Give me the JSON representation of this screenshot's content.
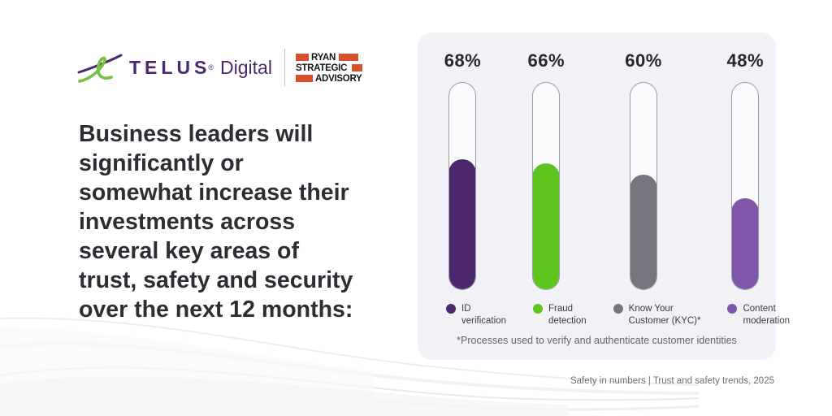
{
  "brand": {
    "telus_wordmark": "TELUS",
    "telus_trademark": "®",
    "telus_product": "Digital",
    "partner": {
      "line1": "RYAN",
      "line2": "STRATEGIC",
      "line3": "ADVISORY"
    },
    "colors": {
      "telus_purple": "#4B286D",
      "icon_green": "#76C043",
      "partner_orange": "#D6502E"
    }
  },
  "headline": "Business leaders will\nsignificantly or\nsomewhat increase their\ninvestments across\nseveral key areas of\ntrust, safety and security\nover the next 12 months:",
  "chart_data": {
    "type": "bar",
    "orientation": "vertical",
    "unit": "%",
    "ylim": [
      0,
      100
    ],
    "grid": false,
    "legend_position": "bottom",
    "categories": [
      "ID verification",
      "Fraud detection",
      "Know Your Customer (KYC)*",
      "Content moderation"
    ],
    "values": [
      68,
      66,
      60,
      48
    ],
    "value_labels": [
      "68%",
      "66%",
      "60%",
      "48%"
    ],
    "bar_colors": [
      "#4B286D",
      "#5EC41F",
      "#75757D",
      "#7E57A8"
    ],
    "legend_labels": [
      "ID\nverification",
      "Fraud\ndetection",
      "Know Your\nCustomer (KYC)*",
      "Content\nmoderation"
    ],
    "footnote": "*Processes used to verify and authenticate customer identities",
    "card_background": "#F2F2F6"
  },
  "caption": "Safety in numbers | Trust and safety trends, 2025"
}
